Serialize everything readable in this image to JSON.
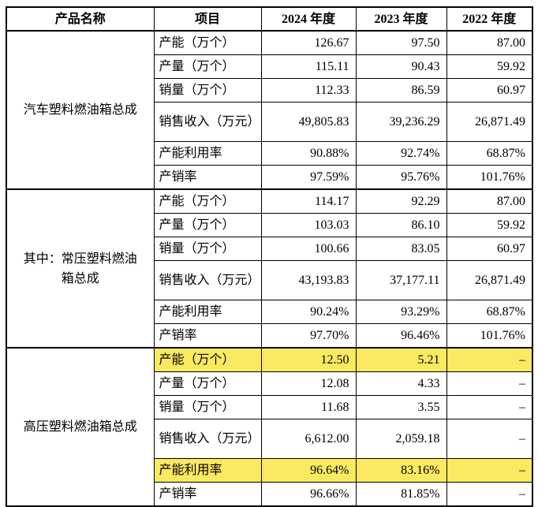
{
  "table": {
    "headers": [
      "产品名称",
      "项目",
      "2024 年度",
      "2023 年度",
      "2022 年度"
    ],
    "groups": [
      {
        "name": "汽车塑料燃油箱总成",
        "rows": [
          {
            "item": "产能（万个）",
            "y2024": "126.67",
            "y2023": "97.50",
            "y2022": "87.00",
            "highlight": false
          },
          {
            "item": "产量（万个）",
            "y2024": "115.11",
            "y2023": "90.43",
            "y2022": "59.92",
            "highlight": false
          },
          {
            "item": "销量（万个）",
            "y2024": "112.33",
            "y2023": "86.59",
            "y2022": "60.97",
            "highlight": false
          },
          {
            "item": "销售收入（万元）",
            "y2024": "49,805.83",
            "y2023": "39,236.29",
            "y2022": "26,871.49",
            "highlight": false
          },
          {
            "item": "产能利用率",
            "y2024": "90.88%",
            "y2023": "92.74%",
            "y2022": "68.87%",
            "highlight": false
          },
          {
            "item": "产销率",
            "y2024": "97.59%",
            "y2023": "95.76%",
            "y2022": "101.76%",
            "highlight": false
          }
        ]
      },
      {
        "name": "其中：常压塑料燃油箱总成",
        "rows": [
          {
            "item": "产能（万个）",
            "y2024": "114.17",
            "y2023": "92.29",
            "y2022": "87.00",
            "highlight": false
          },
          {
            "item": "产量（万个）",
            "y2024": "103.03",
            "y2023": "86.10",
            "y2022": "59.92",
            "highlight": false
          },
          {
            "item": "销量（万个）",
            "y2024": "100.66",
            "y2023": "83.05",
            "y2022": "60.97",
            "highlight": false
          },
          {
            "item": "销售收入（万元）",
            "y2024": "43,193.83",
            "y2023": "37,177.11",
            "y2022": "26,871.49",
            "highlight": false
          },
          {
            "item": "产能利用率",
            "y2024": "90.24%",
            "y2023": "93.29%",
            "y2022": "68.87%",
            "highlight": false
          },
          {
            "item": "产销率",
            "y2024": "97.70%",
            "y2023": "96.46%",
            "y2022": "101.76%",
            "highlight": false
          }
        ]
      },
      {
        "name": "高压塑料燃油箱总成",
        "rows": [
          {
            "item": "产能（万个）",
            "y2024": "12.50",
            "y2023": "5.21",
            "y2022": "–",
            "highlight": true
          },
          {
            "item": "产量（万个）",
            "y2024": "12.08",
            "y2023": "4.33",
            "y2022": "–",
            "highlight": false
          },
          {
            "item": "销量（万个）",
            "y2024": "11.68",
            "y2023": "3.55",
            "y2022": "–",
            "highlight": false
          },
          {
            "item": "销售收入（万元）",
            "y2024": "6,612.00",
            "y2023": "2,059.18",
            "y2022": "–",
            "highlight": false
          },
          {
            "item": "产能利用率",
            "y2024": "96.64%",
            "y2023": "83.16%",
            "y2022": "–",
            "highlight": true
          },
          {
            "item": "产销率",
            "y2024": "96.66%",
            "y2023": "81.85%",
            "y2022": "–",
            "highlight": false
          }
        ]
      }
    ]
  },
  "colors": {
    "highlight": "#fbe962",
    "border": "#000000",
    "background": "#ffffff"
  }
}
